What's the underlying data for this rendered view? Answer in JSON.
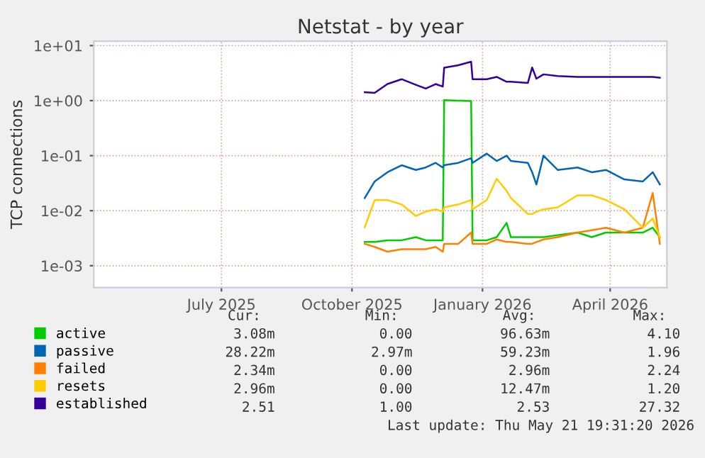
{
  "chart_data": {
    "type": "line",
    "title": "Netstat - by year",
    "ylabel": "TCP connections",
    "log": "y",
    "grid": true,
    "legend": "bottom",
    "x": [
      "2025-10-25",
      "2025-11-01",
      "2025-11-10",
      "2025-11-20",
      "2025-11-30",
      "2025-12-07",
      "2025-12-14",
      "2025-12-19",
      "2025-12-20",
      "2025-12-30",
      "2026-01-08",
      "2026-01-09",
      "2026-01-19",
      "2026-01-26",
      "2026-02-02",
      "2026-02-05",
      "2026-02-17",
      "2026-02-20",
      "2026-02-23",
      "2026-02-28",
      "2026-03-10",
      "2026-03-24",
      "2026-04-03",
      "2026-04-13",
      "2026-04-26",
      "2026-05-09",
      "2026-05-16",
      "2026-05-21"
    ],
    "xlim": [
      "2025-04-17",
      "2026-05-26"
    ],
    "xticks": [
      {
        "value": "2025-07-16",
        "label": "July 2025"
      },
      {
        "value": "2025-10-16",
        "label": "October 2025"
      },
      {
        "value": "2026-01-16",
        "label": "January 2026"
      },
      {
        "value": "2026-04-16",
        "label": "April 2026"
      }
    ],
    "ylim": [
      0.0004,
      12
    ],
    "yticks": [
      {
        "value": 0.001,
        "label": "1e-03"
      },
      {
        "value": 0.01,
        "label": "1e-02"
      },
      {
        "value": 0.1,
        "label": "1e-01"
      },
      {
        "value": 1,
        "label": "1e+00"
      },
      {
        "value": 10,
        "label": "1e+01"
      }
    ],
    "series": [
      {
        "name": "active",
        "color": "#00cc00",
        "values": [
          0.0027,
          0.0027,
          0.0029,
          0.0029,
          0.0033,
          0.0029,
          0.0029,
          0.0029,
          1.02,
          1.0,
          0.98,
          0.0029,
          0.0029,
          0.0033,
          0.006,
          0.0033,
          0.0033,
          0.0033,
          0.0033,
          0.0033,
          0.0036,
          0.004,
          0.0033,
          0.004,
          0.004,
          0.004,
          0.0049,
          0.0033
        ]
      },
      {
        "name": "passive",
        "color": "#0066b3",
        "values": [
          0.017,
          0.034,
          0.05,
          0.067,
          0.055,
          0.061,
          0.074,
          0.061,
          0.067,
          0.074,
          0.09,
          0.074,
          0.109,
          0.08,
          0.1,
          0.08,
          0.074,
          0.05,
          0.03,
          0.1,
          0.055,
          0.061,
          0.05,
          0.055,
          0.037,
          0.034,
          0.05,
          0.03
        ]
      },
      {
        "name": "failed",
        "color": "#ff8000",
        "values": [
          0.0025,
          0.0022,
          0.0018,
          0.002,
          0.002,
          0.002,
          0.0022,
          0.0018,
          0.0025,
          0.0025,
          0.004,
          0.0025,
          0.0025,
          0.003,
          0.0027,
          0.0027,
          0.0025,
          0.0025,
          0.0027,
          0.003,
          0.0033,
          0.004,
          0.0044,
          0.0049,
          0.004,
          0.0049,
          0.021,
          0.0025
        ]
      },
      {
        "name": "resets",
        "color": "#ffcc00",
        "values": [
          0.005,
          0.0156,
          0.0156,
          0.013,
          0.008,
          0.0096,
          0.0106,
          0.0096,
          0.0115,
          0.013,
          0.0156,
          0.0106,
          0.0156,
          0.038,
          0.023,
          0.017,
          0.0087,
          0.0087,
          0.0096,
          0.0106,
          0.0115,
          0.019,
          0.019,
          0.0156,
          0.0106,
          0.0049,
          0.0072,
          0.0033
        ]
      },
      {
        "name": "established",
        "color": "#330099",
        "values": [
          1.42,
          1.38,
          2.0,
          2.45,
          1.94,
          1.66,
          2.0,
          1.8,
          3.97,
          4.4,
          5.1,
          2.45,
          2.45,
          2.7,
          2.2,
          2.2,
          2.1,
          4.0,
          2.5,
          3.0,
          2.8,
          2.7,
          2.7,
          2.7,
          2.7,
          2.7,
          2.7,
          2.6
        ]
      }
    ],
    "annotations": [
      "Cur:",
      "Min:",
      "Avg:",
      "Max:",
      "3.08m",
      "0.00",
      "96.63m",
      "4.10",
      "28.22m",
      "2.97m",
      "59.23m",
      "1.96",
      "2.34m",
      "0.00",
      "2.96m",
      "2.24",
      "2.96m",
      "0.00",
      "12.47m",
      "1.20",
      "2.51",
      "1.00",
      "2.53",
      "27.32",
      "Last update: Thu May 21 19:31:20 2026"
    ]
  }
}
